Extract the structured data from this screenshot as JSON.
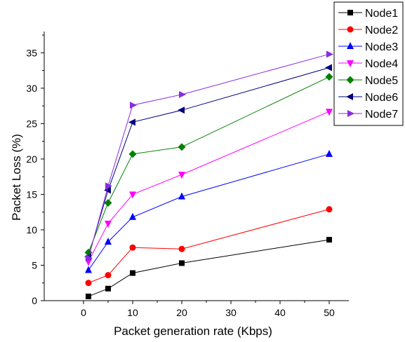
{
  "chart_data": {
    "type": "line",
    "xlabel": "Packet generation rate (Kbps)",
    "ylabel": "Packet Loss (%)",
    "xlim": [
      -8,
      54
    ],
    "ylim": [
      0,
      38
    ],
    "x_ticks": [
      0,
      10,
      20,
      30,
      40,
      50
    ],
    "y_ticks": [
      0,
      5,
      10,
      15,
      20,
      25,
      30,
      35
    ],
    "grid": false,
    "legend_position": "top-right",
    "x": [
      1,
      5,
      10,
      20,
      50
    ],
    "series": [
      {
        "name": "Node1",
        "color": "#000000",
        "marker": "square",
        "values": [
          0.6,
          1.7,
          3.9,
          5.3,
          8.6
        ]
      },
      {
        "name": "Node2",
        "color": "#ff0000",
        "marker": "circle",
        "values": [
          2.5,
          3.6,
          7.5,
          7.3,
          12.9
        ]
      },
      {
        "name": "Node3",
        "color": "#0000ff",
        "marker": "triangle-up",
        "values": [
          4.3,
          8.3,
          11.8,
          14.7,
          20.7
        ]
      },
      {
        "name": "Node4",
        "color": "#ff00ff",
        "marker": "triangle-down",
        "values": [
          5.5,
          10.9,
          15.0,
          17.8,
          26.7
        ]
      },
      {
        "name": "Node5",
        "color": "#008000",
        "marker": "diamond",
        "values": [
          6.8,
          13.8,
          20.7,
          21.7,
          31.6
        ]
      },
      {
        "name": "Node6",
        "color": "#000080",
        "marker": "triangle-left",
        "values": [
          6.2,
          15.6,
          25.2,
          26.9,
          32.9
        ]
      },
      {
        "name": "Node7",
        "color": "#8a2be2",
        "marker": "triangle-right",
        "values": [
          6.0,
          16.2,
          27.6,
          29.1,
          34.8
        ]
      }
    ]
  }
}
